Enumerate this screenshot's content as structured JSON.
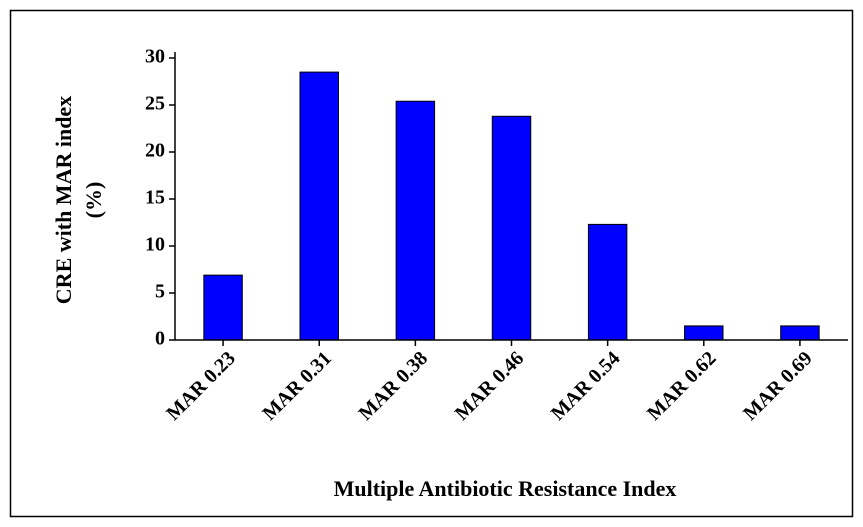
{
  "chart_data": {
    "type": "bar",
    "ylabel": [
      "CRE with MAR index",
      "(%)"
    ],
    "xlabel": "Multiple Antibiotic Resistance  Index",
    "categories": [
      "MAR 0.23",
      "MAR 0.31",
      "MAR 0.38",
      "MAR 0.46",
      "MAR 0.54",
      "MAR 0.62",
      "MAR 0.69"
    ],
    "values": [
      6.9,
      28.5,
      25.4,
      23.8,
      12.3,
      1.5,
      1.5
    ],
    "color": "#0000ff",
    "ylim": [
      0,
      30
    ],
    "yticks": [
      0,
      5,
      10,
      15,
      20,
      25,
      30
    ],
    "grid": false
  }
}
